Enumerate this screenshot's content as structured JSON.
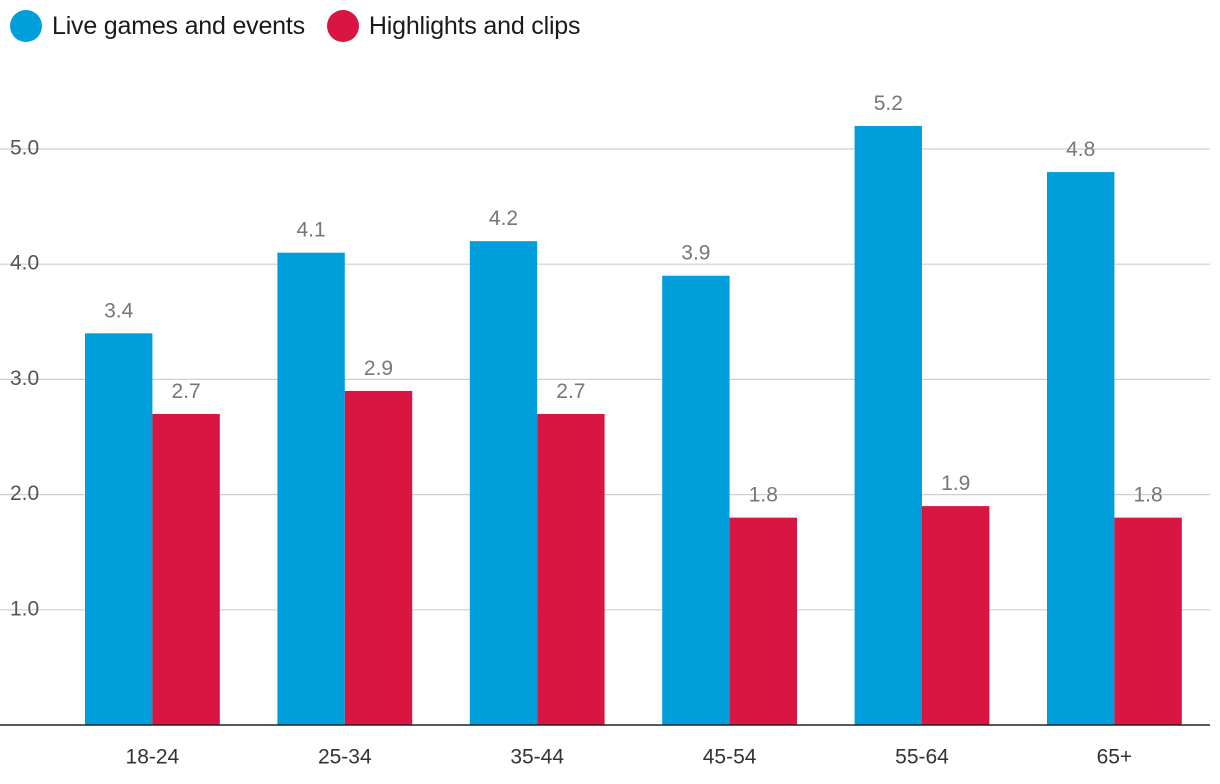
{
  "chart_data": {
    "type": "bar",
    "title": "",
    "xlabel": "",
    "ylabel": "",
    "categories": [
      "18-24",
      "25-34",
      "35-44",
      "45-54",
      "55-64",
      "65+"
    ],
    "series": [
      {
        "name": "Live games and events",
        "color": "#009fdb",
        "values": [
          3.4,
          4.1,
          4.2,
          3.9,
          5.2,
          4.8
        ],
        "labels": [
          "3.4",
          "4.1",
          "4.2",
          "3.9",
          "5.2",
          "4.8"
        ]
      },
      {
        "name": "Highlights and clips",
        "color": "#d91541",
        "values": [
          2.7,
          2.9,
          2.7,
          1.8,
          1.9,
          1.8
        ],
        "labels": [
          "2.7",
          "2.9",
          "2.7",
          "1.8",
          "1.9",
          "1.8"
        ]
      }
    ],
    "ylim": [
      0,
      5.5
    ],
    "yticks": [
      1,
      2,
      3,
      4,
      5
    ],
    "ytick_labels": [
      "1.0",
      "2.0",
      "3.0",
      "4.0",
      "5.0"
    ],
    "grid": true,
    "legend_position": "top-left"
  }
}
